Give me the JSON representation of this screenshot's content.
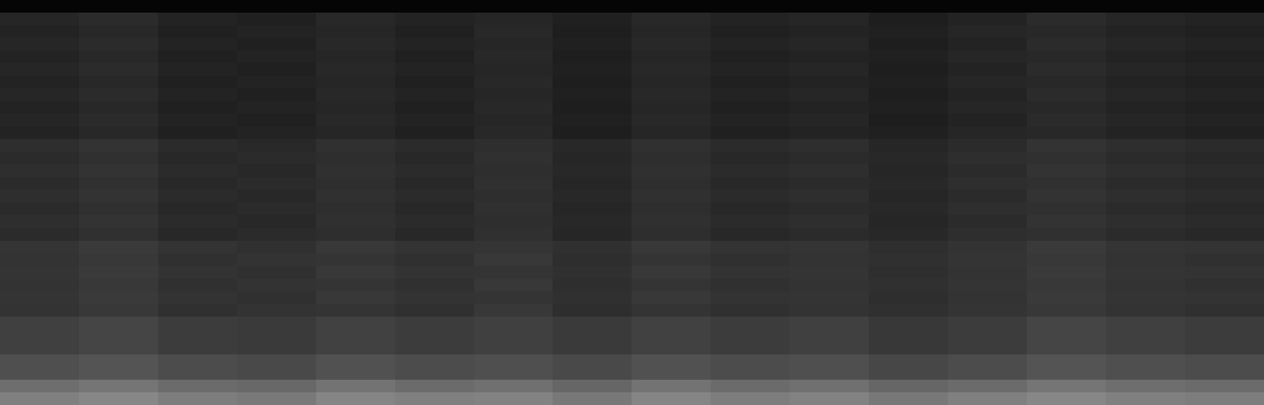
{
  "chart_data": {
    "type": "heatmap",
    "color": "gray",
    "tick_labels": false,
    "color_range": [
      0,
      1
    ],
    "cells": [
      [
        0.02,
        0.02,
        0.02,
        0.02,
        0.02,
        0.02,
        0.02,
        0.02,
        0.02,
        0.02,
        0.02,
        0.02,
        0.02,
        0.02,
        0.02,
        0.02
      ],
      [
        0.15,
        0.17,
        0.14,
        0.13,
        0.16,
        0.14,
        0.15,
        0.13,
        0.16,
        0.14,
        0.15,
        0.12,
        0.14,
        0.17,
        0.15,
        0.14
      ],
      [
        0.14,
        0.16,
        0.13,
        0.14,
        0.15,
        0.13,
        0.16,
        0.12,
        0.15,
        0.13,
        0.14,
        0.13,
        0.15,
        0.16,
        0.14,
        0.13
      ],
      [
        0.15,
        0.17,
        0.14,
        0.13,
        0.16,
        0.14,
        0.15,
        0.13,
        0.16,
        0.14,
        0.15,
        0.12,
        0.14,
        0.17,
        0.15,
        0.14
      ],
      [
        0.14,
        0.16,
        0.13,
        0.14,
        0.15,
        0.13,
        0.16,
        0.12,
        0.15,
        0.13,
        0.14,
        0.13,
        0.15,
        0.16,
        0.14,
        0.13
      ],
      [
        0.15,
        0.17,
        0.14,
        0.13,
        0.16,
        0.14,
        0.15,
        0.13,
        0.16,
        0.14,
        0.15,
        0.12,
        0.14,
        0.17,
        0.15,
        0.14
      ],
      [
        0.14,
        0.16,
        0.13,
        0.14,
        0.15,
        0.13,
        0.16,
        0.12,
        0.15,
        0.13,
        0.14,
        0.13,
        0.15,
        0.16,
        0.14,
        0.13
      ],
      [
        0.15,
        0.17,
        0.14,
        0.13,
        0.16,
        0.14,
        0.15,
        0.13,
        0.16,
        0.14,
        0.15,
        0.12,
        0.14,
        0.17,
        0.15,
        0.14
      ],
      [
        0.14,
        0.16,
        0.13,
        0.14,
        0.15,
        0.13,
        0.16,
        0.12,
        0.15,
        0.13,
        0.14,
        0.13,
        0.15,
        0.16,
        0.14,
        0.13
      ],
      [
        0.15,
        0.17,
        0.14,
        0.13,
        0.16,
        0.14,
        0.15,
        0.13,
        0.16,
        0.14,
        0.15,
        0.12,
        0.14,
        0.17,
        0.15,
        0.14
      ],
      [
        0.14,
        0.16,
        0.13,
        0.14,
        0.15,
        0.13,
        0.16,
        0.12,
        0.15,
        0.13,
        0.14,
        0.13,
        0.15,
        0.16,
        0.14,
        0.13
      ],
      [
        0.18,
        0.2,
        0.17,
        0.16,
        0.19,
        0.17,
        0.18,
        0.16,
        0.19,
        0.17,
        0.18,
        0.15,
        0.17,
        0.2,
        0.18,
        0.17
      ],
      [
        0.17,
        0.19,
        0.16,
        0.17,
        0.18,
        0.16,
        0.19,
        0.15,
        0.18,
        0.16,
        0.17,
        0.16,
        0.18,
        0.19,
        0.17,
        0.16
      ],
      [
        0.18,
        0.2,
        0.17,
        0.16,
        0.19,
        0.17,
        0.18,
        0.16,
        0.19,
        0.17,
        0.18,
        0.15,
        0.17,
        0.2,
        0.18,
        0.17
      ],
      [
        0.17,
        0.19,
        0.16,
        0.17,
        0.18,
        0.16,
        0.19,
        0.15,
        0.18,
        0.16,
        0.17,
        0.16,
        0.18,
        0.19,
        0.17,
        0.16
      ],
      [
        0.18,
        0.2,
        0.17,
        0.16,
        0.19,
        0.17,
        0.18,
        0.16,
        0.19,
        0.17,
        0.18,
        0.15,
        0.17,
        0.2,
        0.18,
        0.17
      ],
      [
        0.17,
        0.19,
        0.16,
        0.17,
        0.18,
        0.16,
        0.19,
        0.15,
        0.18,
        0.16,
        0.17,
        0.16,
        0.18,
        0.19,
        0.17,
        0.16
      ],
      [
        0.18,
        0.2,
        0.17,
        0.16,
        0.19,
        0.17,
        0.18,
        0.16,
        0.19,
        0.17,
        0.18,
        0.15,
        0.17,
        0.2,
        0.18,
        0.17
      ],
      [
        0.17,
        0.19,
        0.16,
        0.17,
        0.18,
        0.16,
        0.19,
        0.15,
        0.18,
        0.16,
        0.17,
        0.16,
        0.18,
        0.19,
        0.17,
        0.16
      ],
      [
        0.21,
        0.23,
        0.2,
        0.19,
        0.22,
        0.2,
        0.21,
        0.19,
        0.22,
        0.2,
        0.21,
        0.18,
        0.2,
        0.23,
        0.21,
        0.2
      ],
      [
        0.2,
        0.22,
        0.19,
        0.2,
        0.21,
        0.19,
        0.22,
        0.18,
        0.21,
        0.19,
        0.2,
        0.19,
        0.21,
        0.22,
        0.2,
        0.19
      ],
      [
        0.21,
        0.23,
        0.2,
        0.19,
        0.22,
        0.2,
        0.21,
        0.19,
        0.22,
        0.2,
        0.21,
        0.18,
        0.2,
        0.23,
        0.21,
        0.2
      ],
      [
        0.2,
        0.22,
        0.19,
        0.2,
        0.21,
        0.19,
        0.22,
        0.18,
        0.21,
        0.19,
        0.2,
        0.19,
        0.21,
        0.22,
        0.2,
        0.19
      ],
      [
        0.21,
        0.23,
        0.2,
        0.19,
        0.22,
        0.2,
        0.21,
        0.19,
        0.22,
        0.2,
        0.21,
        0.18,
        0.2,
        0.23,
        0.21,
        0.2
      ],
      [
        0.2,
        0.22,
        0.19,
        0.2,
        0.21,
        0.19,
        0.22,
        0.18,
        0.21,
        0.19,
        0.2,
        0.19,
        0.21,
        0.22,
        0.2,
        0.19
      ],
      [
        0.25,
        0.27,
        0.24,
        0.23,
        0.26,
        0.24,
        0.25,
        0.23,
        0.26,
        0.24,
        0.25,
        0.22,
        0.24,
        0.27,
        0.25,
        0.24
      ],
      [
        0.25,
        0.27,
        0.24,
        0.23,
        0.26,
        0.24,
        0.25,
        0.23,
        0.26,
        0.24,
        0.25,
        0.22,
        0.24,
        0.27,
        0.25,
        0.24
      ],
      [
        0.25,
        0.27,
        0.24,
        0.23,
        0.26,
        0.24,
        0.25,
        0.23,
        0.26,
        0.24,
        0.25,
        0.22,
        0.24,
        0.27,
        0.25,
        0.24
      ],
      [
        0.31,
        0.33,
        0.3,
        0.29,
        0.32,
        0.3,
        0.31,
        0.29,
        0.32,
        0.3,
        0.31,
        0.28,
        0.3,
        0.33,
        0.31,
        0.3
      ],
      [
        0.31,
        0.33,
        0.3,
        0.29,
        0.32,
        0.3,
        0.31,
        0.29,
        0.32,
        0.3,
        0.31,
        0.28,
        0.3,
        0.33,
        0.31,
        0.3
      ],
      [
        0.43,
        0.46,
        0.42,
        0.41,
        0.45,
        0.42,
        0.44,
        0.4,
        0.45,
        0.42,
        0.44,
        0.4,
        0.42,
        0.46,
        0.43,
        0.42
      ],
      [
        0.5,
        0.53,
        0.49,
        0.48,
        0.52,
        0.5,
        0.51,
        0.47,
        0.52,
        0.49,
        0.51,
        0.47,
        0.5,
        0.53,
        0.5,
        0.49
      ]
    ]
  }
}
